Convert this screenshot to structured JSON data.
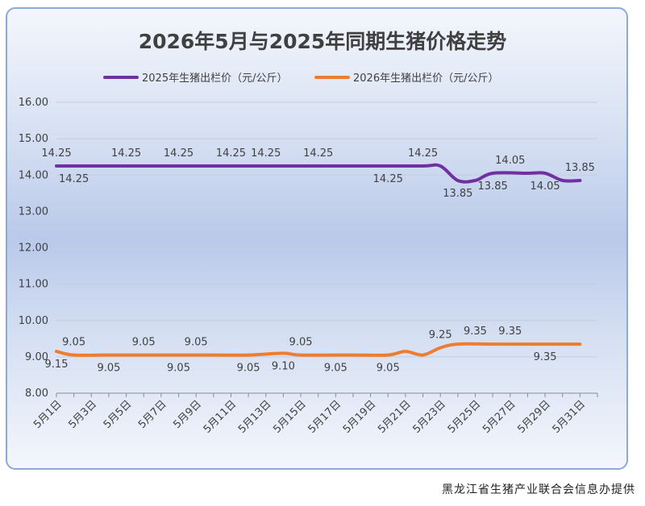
{
  "footer": "黑龙江省生猪产业联合会信息办提供",
  "chart_data": {
    "type": "line",
    "title": "2026年5月与2025年同期生猪价格走势",
    "legend_position": "top",
    "grid": true,
    "ylim": [
      8.0,
      16.0
    ],
    "y_ticks": [
      "8.00",
      "9.00",
      "10.00",
      "11.00",
      "12.00",
      "13.00",
      "14.00",
      "15.00",
      "16.00"
    ],
    "x_ticks": [
      "5月1日",
      "5月3日",
      "5月5日",
      "5月7日",
      "5月9日",
      "5月11日",
      "5月13日",
      "5月15日",
      "5月17日",
      "5月19日",
      "5月21日",
      "5月23日",
      "5月25日",
      "5月27日",
      "5月29日",
      "5月31日"
    ],
    "series": [
      {
        "name": "2025年生猪出栏价（元/公斤）",
        "color": "#7030a0",
        "points": [
          [
            1,
            14.25
          ],
          [
            2,
            14.25
          ],
          [
            4,
            14.25
          ],
          [
            6,
            14.25
          ],
          [
            8,
            14.25
          ],
          [
            10,
            14.25
          ],
          [
            12,
            14.25
          ],
          [
            14,
            14.25
          ],
          [
            16,
            14.25
          ],
          [
            19,
            14.25
          ],
          [
            22,
            14.25
          ],
          [
            23,
            14.25
          ],
          [
            24,
            13.85
          ],
          [
            25,
            13.85
          ],
          [
            26,
            14.05
          ],
          [
            28,
            14.05
          ],
          [
            29,
            14.05
          ],
          [
            30,
            13.85
          ],
          [
            31,
            13.85
          ]
        ],
        "labels": [
          {
            "x": 1,
            "text": "14.25",
            "pos": "above"
          },
          {
            "x": 2,
            "text": "14.25",
            "pos": "below"
          },
          {
            "x": 5,
            "text": "14.25",
            "pos": "above"
          },
          {
            "x": 8,
            "text": "14.25",
            "pos": "above"
          },
          {
            "x": 11,
            "text": "14.25",
            "pos": "above"
          },
          {
            "x": 13,
            "text": "14.25",
            "pos": "above"
          },
          {
            "x": 16,
            "text": "14.25",
            "pos": "above"
          },
          {
            "x": 20,
            "text": "14.25",
            "pos": "below"
          },
          {
            "x": 22,
            "text": "14.25",
            "pos": "above"
          },
          {
            "x": 24,
            "text": "13.85",
            "pos": "below"
          },
          {
            "x": 26,
            "text": "13.85",
            "pos": "below"
          },
          {
            "x": 27,
            "text": "14.05",
            "pos": "above"
          },
          {
            "x": 29,
            "text": "14.05",
            "pos": "below"
          },
          {
            "x": 31,
            "text": "13.85",
            "pos": "above"
          }
        ]
      },
      {
        "name": "2026年生猪出栏价（元/公斤）",
        "color": "#ed7d31",
        "points": [
          [
            1,
            9.15
          ],
          [
            2,
            9.05
          ],
          [
            4,
            9.05
          ],
          [
            6,
            9.05
          ],
          [
            8,
            9.05
          ],
          [
            10,
            9.05
          ],
          [
            12,
            9.05
          ],
          [
            14,
            9.1
          ],
          [
            15,
            9.05
          ],
          [
            18,
            9.05
          ],
          [
            20,
            9.05
          ],
          [
            21,
            9.15
          ],
          [
            22,
            9.05
          ],
          [
            23,
            9.25
          ],
          [
            24,
            9.35
          ],
          [
            26,
            9.35
          ],
          [
            28,
            9.35
          ],
          [
            31,
            9.35
          ]
        ],
        "labels": [
          {
            "x": 1,
            "text": "9.15",
            "pos": "below"
          },
          {
            "x": 2,
            "text": "9.05",
            "pos": "above"
          },
          {
            "x": 4,
            "text": "9.05",
            "pos": "below"
          },
          {
            "x": 6,
            "text": "9.05",
            "pos": "above"
          },
          {
            "x": 8,
            "text": "9.05",
            "pos": "below"
          },
          {
            "x": 9,
            "text": "9.05",
            "pos": "above"
          },
          {
            "x": 12,
            "text": "9.05",
            "pos": "below"
          },
          {
            "x": 14,
            "text": "9.10",
            "pos": "below"
          },
          {
            "x": 15,
            "text": "9.05",
            "pos": "above"
          },
          {
            "x": 17,
            "text": "9.05",
            "pos": "below"
          },
          {
            "x": 20,
            "text": "9.05",
            "pos": "below"
          },
          {
            "x": 23,
            "text": "9.25",
            "pos": "above"
          },
          {
            "x": 25,
            "text": "9.35",
            "pos": "above"
          },
          {
            "x": 27,
            "text": "9.35",
            "pos": "above"
          },
          {
            "x": 29,
            "text": "9.35",
            "pos": "below"
          }
        ]
      }
    ]
  }
}
